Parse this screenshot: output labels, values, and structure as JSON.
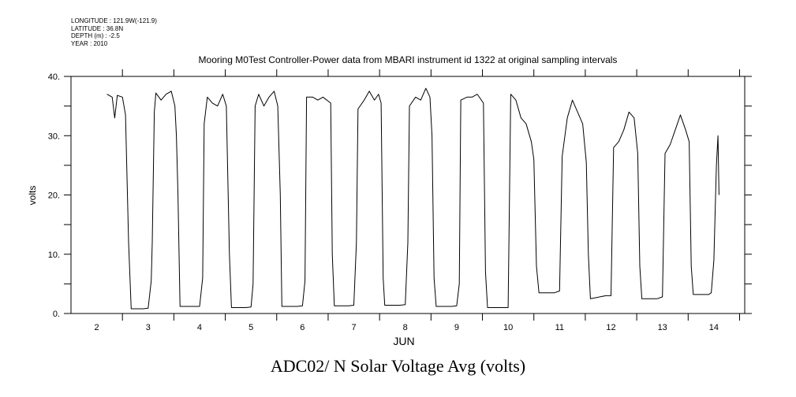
{
  "header": {
    "longitude": "LONGITUDE : 121.9W(-121.9)",
    "latitude": "LATITUDE : 36.8N",
    "depth": "DEPTH (m) : -2.5",
    "year": "YEAR : 2010"
  },
  "chart_data": {
    "type": "line",
    "title": "Mooring M0Test Controller-Power data from MBARI instrument id 1322 at original sampling intervals",
    "caption": "ADC02/ N Solar Voltage Avg (volts)",
    "xlabel": "JUN",
    "ylabel": "volts",
    "xlim": [
      1.5,
      14.6
    ],
    "ylim": [
      0,
      40
    ],
    "x_ticks": [
      "2",
      "3",
      "4",
      "5",
      "6",
      "7",
      "8",
      "9",
      "10",
      "11",
      "12",
      "13",
      "14"
    ],
    "y_ticks": [
      "0.",
      "10.",
      "20.",
      "30.",
      "40."
    ],
    "grid": false,
    "series": [
      {
        "color": "#000000",
        "points": [
          [
            2.2,
            37.0
          ],
          [
            2.3,
            36.5
          ],
          [
            2.35,
            33.0
          ],
          [
            2.4,
            36.8
          ],
          [
            2.5,
            36.5
          ],
          [
            2.56,
            33.5
          ],
          [
            2.62,
            12.0
          ],
          [
            2.67,
            0.8
          ],
          [
            2.9,
            0.8
          ],
          [
            3.0,
            0.9
          ],
          [
            3.06,
            5.5
          ],
          [
            3.08,
            12.0
          ],
          [
            3.12,
            34.0
          ],
          [
            3.15,
            37.2
          ],
          [
            3.25,
            36.0
          ],
          [
            3.35,
            37.0
          ],
          [
            3.45,
            37.5
          ],
          [
            3.52,
            35.0
          ],
          [
            3.55,
            30.0
          ],
          [
            3.58,
            20.0
          ],
          [
            3.62,
            1.2
          ],
          [
            3.9,
            1.2
          ],
          [
            4.0,
            1.2
          ],
          [
            4.06,
            6.0
          ],
          [
            4.09,
            32.0
          ],
          [
            4.15,
            36.5
          ],
          [
            4.25,
            35.5
          ],
          [
            4.35,
            35.0
          ],
          [
            4.45,
            37.0
          ],
          [
            4.52,
            35.0
          ],
          [
            4.58,
            10.0
          ],
          [
            4.62,
            1.0
          ],
          [
            4.9,
            1.0
          ],
          [
            5.0,
            1.1
          ],
          [
            5.04,
            5.0
          ],
          [
            5.08,
            35.0
          ],
          [
            5.15,
            37.0
          ],
          [
            5.25,
            35.0
          ],
          [
            5.35,
            36.5
          ],
          [
            5.45,
            37.5
          ],
          [
            5.52,
            35.0
          ],
          [
            5.57,
            20.0
          ],
          [
            5.6,
            1.2
          ],
          [
            5.9,
            1.2
          ],
          [
            6.0,
            1.3
          ],
          [
            6.05,
            5.5
          ],
          [
            6.08,
            36.5
          ],
          [
            6.2,
            36.5
          ],
          [
            6.3,
            36.0
          ],
          [
            6.4,
            36.5
          ],
          [
            6.55,
            35.5
          ],
          [
            6.58,
            10.0
          ],
          [
            6.62,
            1.3
          ],
          [
            6.9,
            1.3
          ],
          [
            7.0,
            1.4
          ],
          [
            7.05,
            12.0
          ],
          [
            7.08,
            34.5
          ],
          [
            7.2,
            36.0
          ],
          [
            7.3,
            37.5
          ],
          [
            7.4,
            36.0
          ],
          [
            7.48,
            37.0
          ],
          [
            7.53,
            35.5
          ],
          [
            7.57,
            6.0
          ],
          [
            7.6,
            1.4
          ],
          [
            7.9,
            1.4
          ],
          [
            8.0,
            1.5
          ],
          [
            8.05,
            12.0
          ],
          [
            8.08,
            35.0
          ],
          [
            8.2,
            36.5
          ],
          [
            8.3,
            36.0
          ],
          [
            8.4,
            38.0
          ],
          [
            8.48,
            36.5
          ],
          [
            8.52,
            30.0
          ],
          [
            8.56,
            6.0
          ],
          [
            8.6,
            1.2
          ],
          [
            8.9,
            1.2
          ],
          [
            9.0,
            1.3
          ],
          [
            9.05,
            5.0
          ],
          [
            9.08,
            36.0
          ],
          [
            9.2,
            36.5
          ],
          [
            9.3,
            36.5
          ],
          [
            9.4,
            37.0
          ],
          [
            9.52,
            35.5
          ],
          [
            9.56,
            7.0
          ],
          [
            9.6,
            1.0
          ],
          [
            9.9,
            1.0
          ],
          [
            10.0,
            1.0
          ],
          [
            10.05,
            37.0
          ],
          [
            10.15,
            36.0
          ],
          [
            10.25,
            33.0
          ],
          [
            10.35,
            32.0
          ],
          [
            10.45,
            29.0
          ],
          [
            10.5,
            26.0
          ],
          [
            10.55,
            8.0
          ],
          [
            10.6,
            3.5
          ],
          [
            10.9,
            3.5
          ],
          [
            11.0,
            3.8
          ],
          [
            11.05,
            26.5
          ],
          [
            11.15,
            33.0
          ],
          [
            11.25,
            36.0
          ],
          [
            11.35,
            34.0
          ],
          [
            11.45,
            32.0
          ],
          [
            11.52,
            25.5
          ],
          [
            11.56,
            10.0
          ],
          [
            11.6,
            2.5
          ],
          [
            11.9,
            3.0
          ],
          [
            12.0,
            3.0
          ],
          [
            12.05,
            28.0
          ],
          [
            12.15,
            29.0
          ],
          [
            12.25,
            31.0
          ],
          [
            12.35,
            34.0
          ],
          [
            12.45,
            33.0
          ],
          [
            12.52,
            27.0
          ],
          [
            12.56,
            8.0
          ],
          [
            12.6,
            2.5
          ],
          [
            12.9,
            2.5
          ],
          [
            13.0,
            2.8
          ],
          [
            13.05,
            27.0
          ],
          [
            13.15,
            28.5
          ],
          [
            13.25,
            31.0
          ],
          [
            13.35,
            33.5
          ],
          [
            13.45,
            31.0
          ],
          [
            13.52,
            29.0
          ],
          [
            13.56,
            8.0
          ],
          [
            13.6,
            3.2
          ],
          [
            13.9,
            3.2
          ],
          [
            13.95,
            3.5
          ],
          [
            14.0,
            9.0
          ],
          [
            14.05,
            25.0
          ],
          [
            14.08,
            30.0
          ],
          [
            14.1,
            20.0
          ]
        ]
      }
    ]
  }
}
